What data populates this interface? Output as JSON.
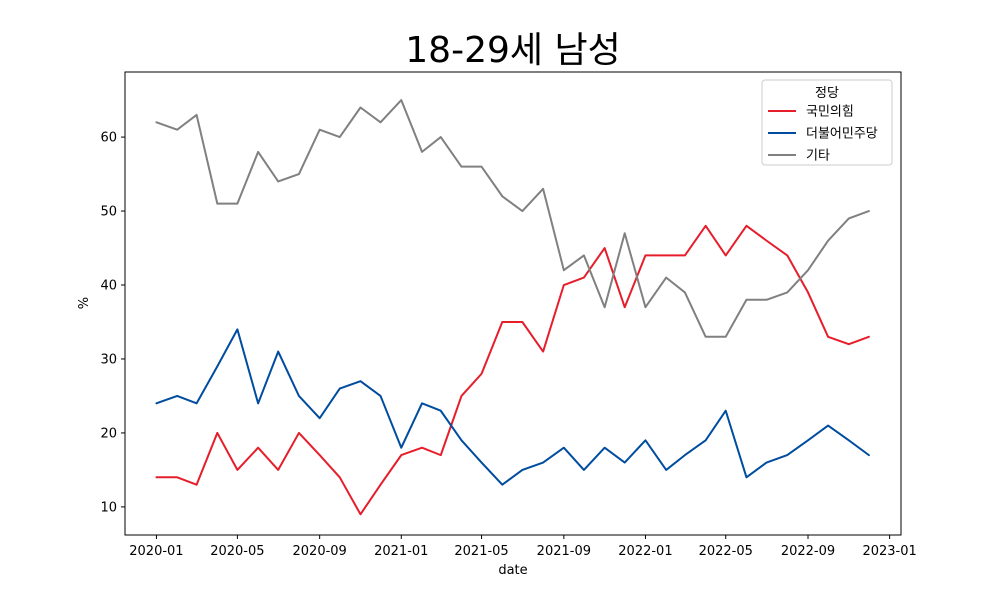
{
  "chart_data": {
    "type": "line",
    "title": "18-29세 남성",
    "xlabel": "date",
    "ylabel": "%",
    "x": [
      "2020-01",
      "2020-02",
      "2020-03",
      "2020-04",
      "2020-05",
      "2020-06",
      "2020-07",
      "2020-08",
      "2020-09",
      "2020-10",
      "2020-11",
      "2020-12",
      "2021-01",
      "2021-02",
      "2021-03",
      "2021-04",
      "2021-05",
      "2021-06",
      "2021-07",
      "2021-08",
      "2021-09",
      "2021-10",
      "2021-11",
      "2021-12",
      "2022-01",
      "2022-02",
      "2022-03",
      "2022-04",
      "2022-05",
      "2022-06",
      "2022-07",
      "2022-08",
      "2022-09",
      "2022-10",
      "2022-11",
      "2022-12"
    ],
    "xticks": [
      "2020-01",
      "2020-05",
      "2020-09",
      "2021-01",
      "2021-05",
      "2021-09",
      "2022-01",
      "2022-05",
      "2022-09",
      "2023-01"
    ],
    "xlim": [
      "2019-11-15",
      "2023-01-18"
    ],
    "yticks": [
      10,
      20,
      30,
      40,
      50,
      60
    ],
    "ylim": [
      6.2,
      68.8
    ],
    "grid": false,
    "legend": {
      "title": "정당",
      "placement": "top-right"
    },
    "series": [
      {
        "name": "국민의힘",
        "color": "#e61e2b",
        "values": [
          14,
          14,
          13,
          20,
          15,
          18,
          15,
          20,
          17,
          14,
          9,
          13,
          17,
          18,
          17,
          25,
          28,
          35,
          35,
          31,
          40,
          41,
          45,
          37,
          44,
          44,
          44,
          48,
          44,
          48,
          46,
          44,
          39,
          33,
          32,
          33
        ]
      },
      {
        "name": "더불어민주당",
        "color": "#004c9f",
        "values": [
          24,
          25,
          24,
          29,
          34,
          24,
          31,
          25,
          22,
          26,
          27,
          25,
          18,
          24,
          23,
          19,
          16,
          13,
          15,
          16,
          18,
          15,
          18,
          16,
          19,
          15,
          17,
          19,
          23,
          14,
          16,
          17,
          19,
          21,
          19,
          17
        ]
      },
      {
        "name": "기타",
        "color": "#808080",
        "values": [
          62,
          61,
          63,
          51,
          51,
          58,
          54,
          55,
          61,
          60,
          64,
          62,
          65,
          58,
          60,
          56,
          56,
          52,
          50,
          53,
          42,
          44,
          37,
          47,
          37,
          41,
          39,
          33,
          33,
          38,
          38,
          39,
          42,
          46,
          49,
          50
        ]
      }
    ]
  }
}
